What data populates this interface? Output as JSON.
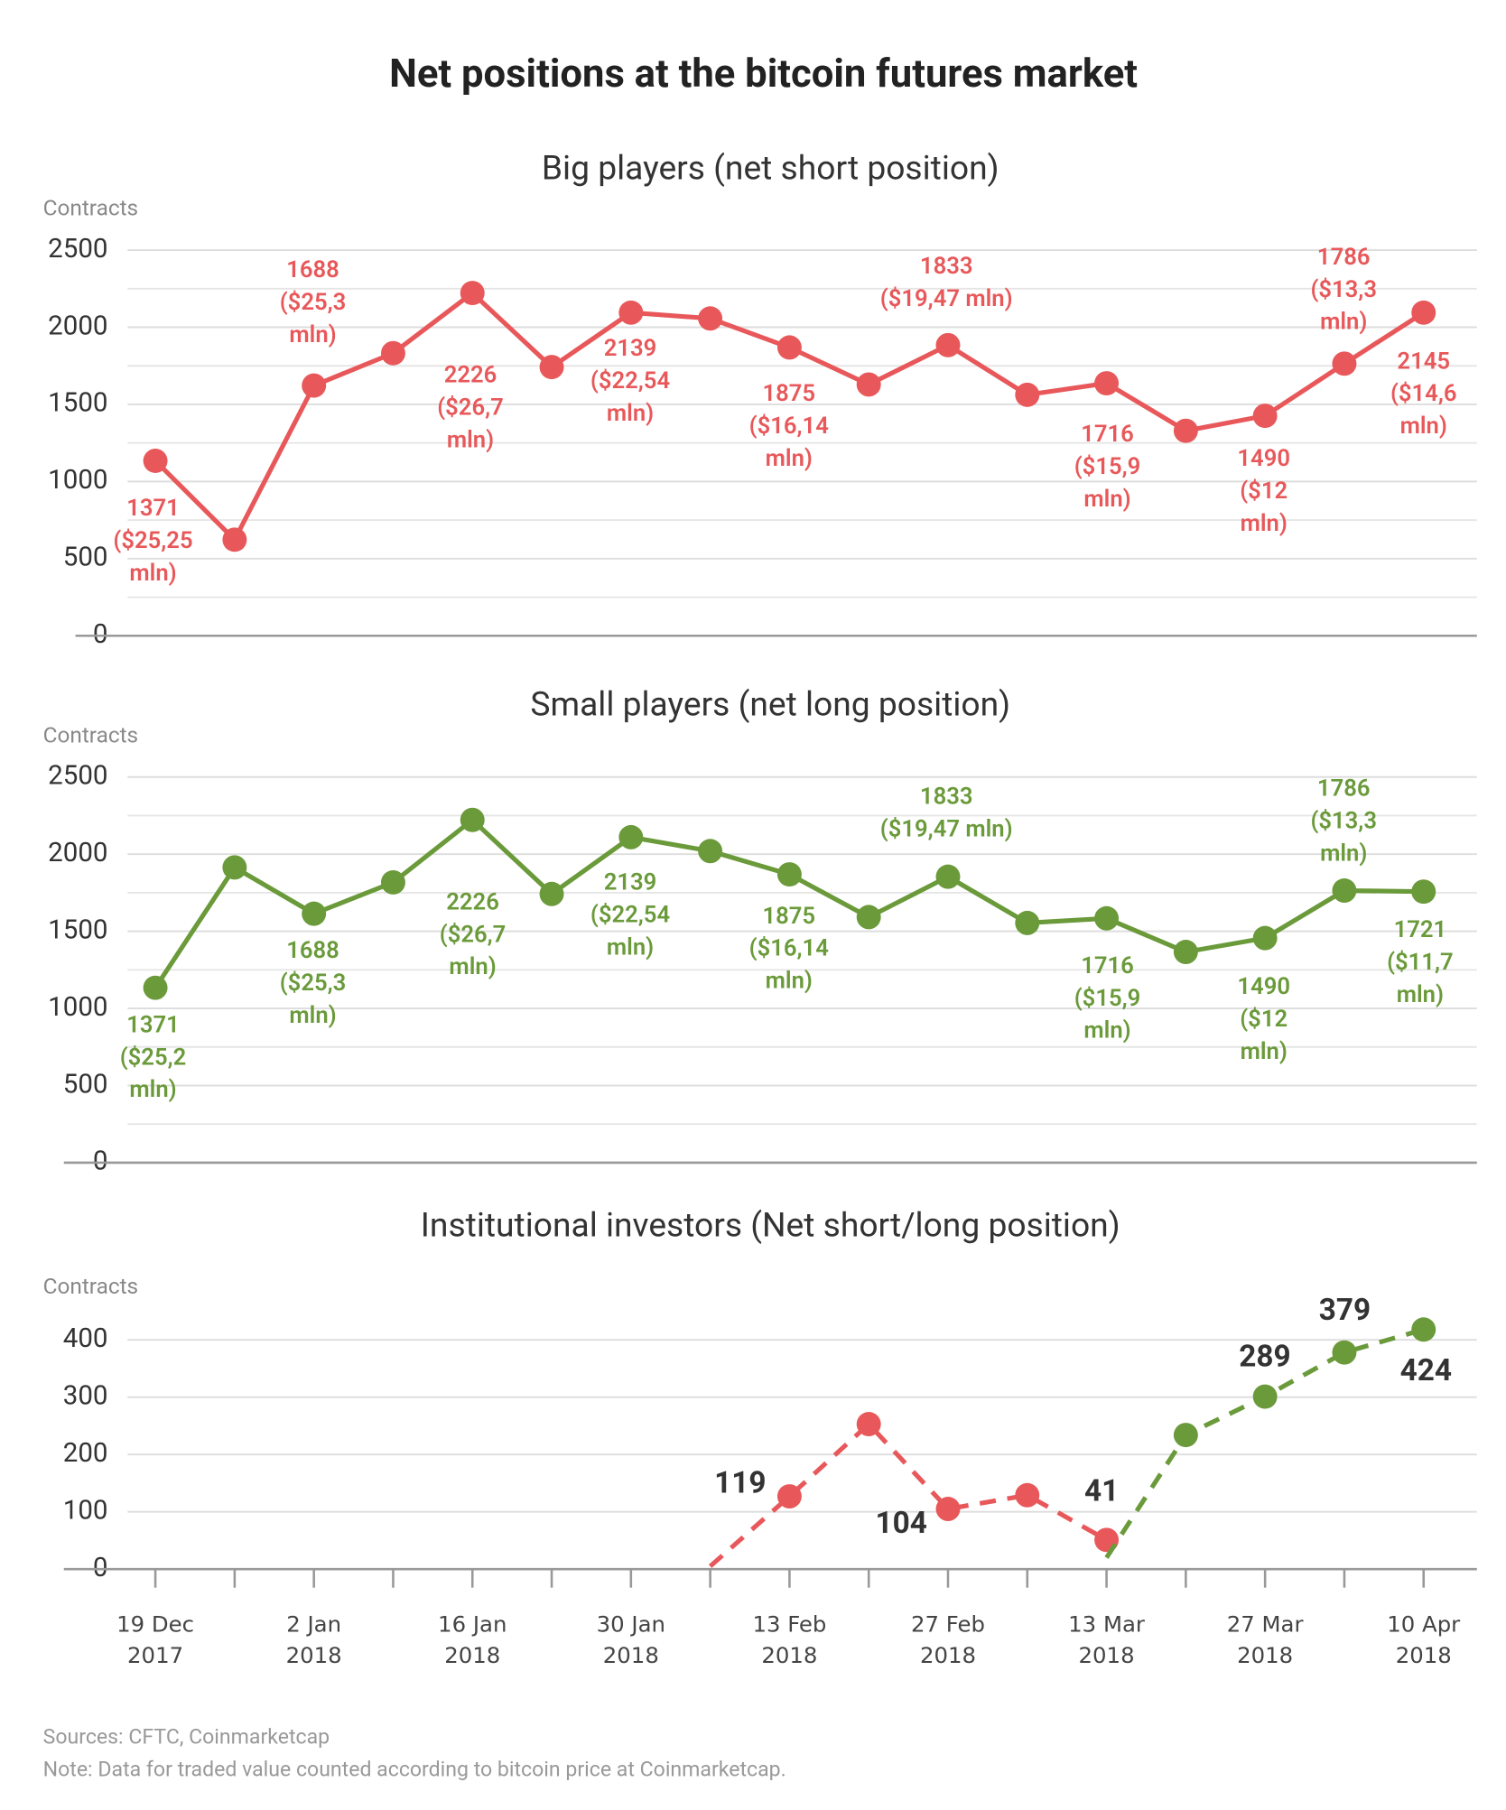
{
  "title": "Net positions at the bitcoin futures market",
  "chart_data": [
    {
      "type": "line",
      "title": "Big players (net short position)",
      "y_label": "Contracts",
      "ylim": [
        0,
        2500
      ],
      "yticks": [
        0,
        500,
        1000,
        1500,
        2000,
        2500
      ],
      "grid": true,
      "series": [
        {
          "color": "#e8585a",
          "values": [
            1134,
            623,
            1622,
            1832,
            2222,
            1742,
            2095,
            2057,
            1869,
            1629,
            1884,
            1562,
            1637,
            1329,
            1426,
            1764,
            2095
          ]
        }
      ],
      "annotations": [
        [
          "1371",
          "($25,25",
          "mln)"
        ],
        [
          "1688",
          "($25,3",
          "mln)"
        ],
        [
          "2226",
          "($26,7",
          "mln)"
        ],
        [
          "2139",
          "($22,54",
          "mln)"
        ],
        [
          "1875",
          "($16,14",
          "mln)"
        ],
        [
          "1833",
          "($19,47 mln)"
        ],
        [
          "1716",
          "($15,9",
          "mln)"
        ],
        [
          "1490",
          "($12",
          "mln)"
        ],
        [
          "1786",
          "($13,3",
          "mln)"
        ],
        [
          "2145",
          "($14,6",
          "mln)"
        ]
      ]
    },
    {
      "type": "line",
      "title": "Small players (net long position)",
      "y_label": "Contracts",
      "ylim": [
        0,
        2500
      ],
      "yticks": [
        0,
        500,
        1000,
        1500,
        2000,
        2500
      ],
      "grid": true,
      "series": [
        {
          "color": "#6a9a3a",
          "values": [
            1134,
            1914,
            1614,
            1817,
            2222,
            1742,
            2110,
            2020,
            1869,
            1592,
            1854,
            1554,
            1584,
            1366,
            1456,
            1764,
            1757
          ]
        }
      ],
      "annotations": [
        [
          "1371",
          "($25,2",
          "mln)"
        ],
        [
          "1688",
          "($25,3",
          "mln)"
        ],
        [
          "2226",
          "($26,7",
          "mln)"
        ],
        [
          "2139",
          "($22,54",
          "mln)"
        ],
        [
          "1875",
          "($16,14",
          "mln)"
        ],
        [
          "1833",
          "($19,47 mln)"
        ],
        [
          "1716",
          "($15,9",
          "mln)"
        ],
        [
          "1490",
          "($12",
          "mln)"
        ],
        [
          "1786",
          "($13,3",
          "mln)"
        ],
        [
          "1721",
          "($11,7",
          "mln)"
        ]
      ]
    },
    {
      "type": "line",
      "title": "Institutional investors (Net short/long position)",
      "y_label": "Contracts",
      "ylim": [
        0,
        400
      ],
      "yticks": [
        0,
        100,
        200,
        300,
        400
      ],
      "grid": true,
      "dashed": true,
      "categories": [
        "19 Dec 2017",
        null,
        "2 Jan 2018",
        null,
        "16 Jan 2018",
        null,
        "30 Jan 2018",
        null,
        "13 Feb 2018",
        null,
        "27 Feb 2018",
        null,
        "13 Mar 2018",
        null,
        "27 Mar 2018",
        null,
        "10 Apr 2018"
      ],
      "series": [
        {
          "color": "#e8585a",
          "values": [
            null,
            null,
            null,
            null,
            null,
            null,
            null,
            5,
            127,
            253,
            105,
            129,
            51,
            null,
            null,
            null,
            null
          ]
        },
        {
          "color": "#6a9a3a",
          "values": [
            null,
            null,
            null,
            null,
            null,
            null,
            null,
            null,
            null,
            null,
            null,
            null,
            20,
            234,
            301,
            378,
            418
          ]
        }
      ],
      "annotations": [
        [
          "119"
        ],
        [
          "104"
        ],
        [
          "41"
        ],
        [
          "289"
        ],
        [
          "379"
        ],
        [
          "424"
        ]
      ]
    }
  ],
  "footer": [
    "Sources: CFTC, Coinmarketcap",
    "Note: Data for traded value counted according to bitcoin price at Coinmarketcap."
  ]
}
